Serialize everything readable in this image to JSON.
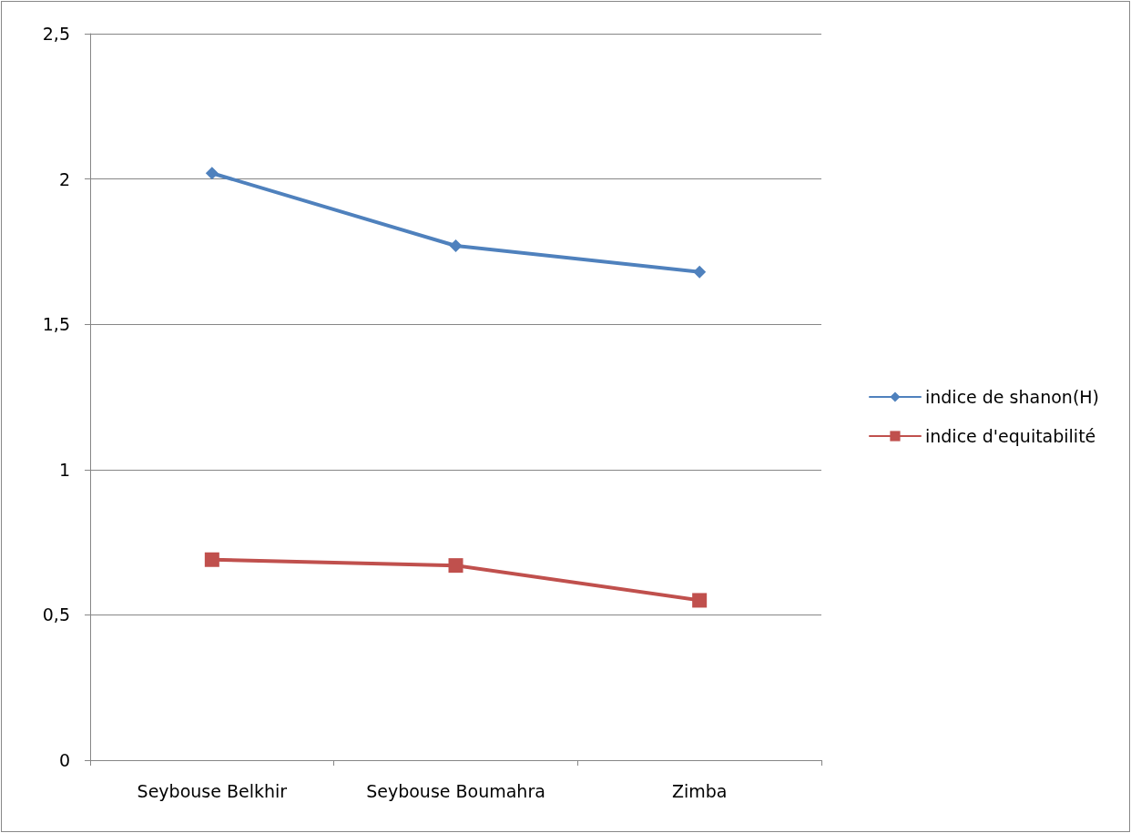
{
  "chart_data": {
    "type": "line",
    "categories": [
      "Seybouse Belkhir",
      "Seybouse Boumahra",
      "Zimba"
    ],
    "series": [
      {
        "name": "indice de shanon(H)",
        "color": "#4f81bd",
        "marker": "diamond",
        "values": [
          2.02,
          1.77,
          1.68
        ]
      },
      {
        "name": "indice d'equitabilité",
        "color": "#c0504d",
        "marker": "square",
        "values": [
          0.69,
          0.67,
          0.55
        ]
      }
    ],
    "ylim": [
      0,
      2.5
    ],
    "yticks": [
      {
        "value": 0,
        "label": "0"
      },
      {
        "value": 0.5,
        "label": "0,5"
      },
      {
        "value": 1,
        "label": "1"
      },
      {
        "value": 1.5,
        "label": "1,5"
      },
      {
        "value": 2,
        "label": "2"
      },
      {
        "value": 2.5,
        "label": "2,5"
      }
    ],
    "grid": "y",
    "legend": "right",
    "line_style": "solid"
  }
}
